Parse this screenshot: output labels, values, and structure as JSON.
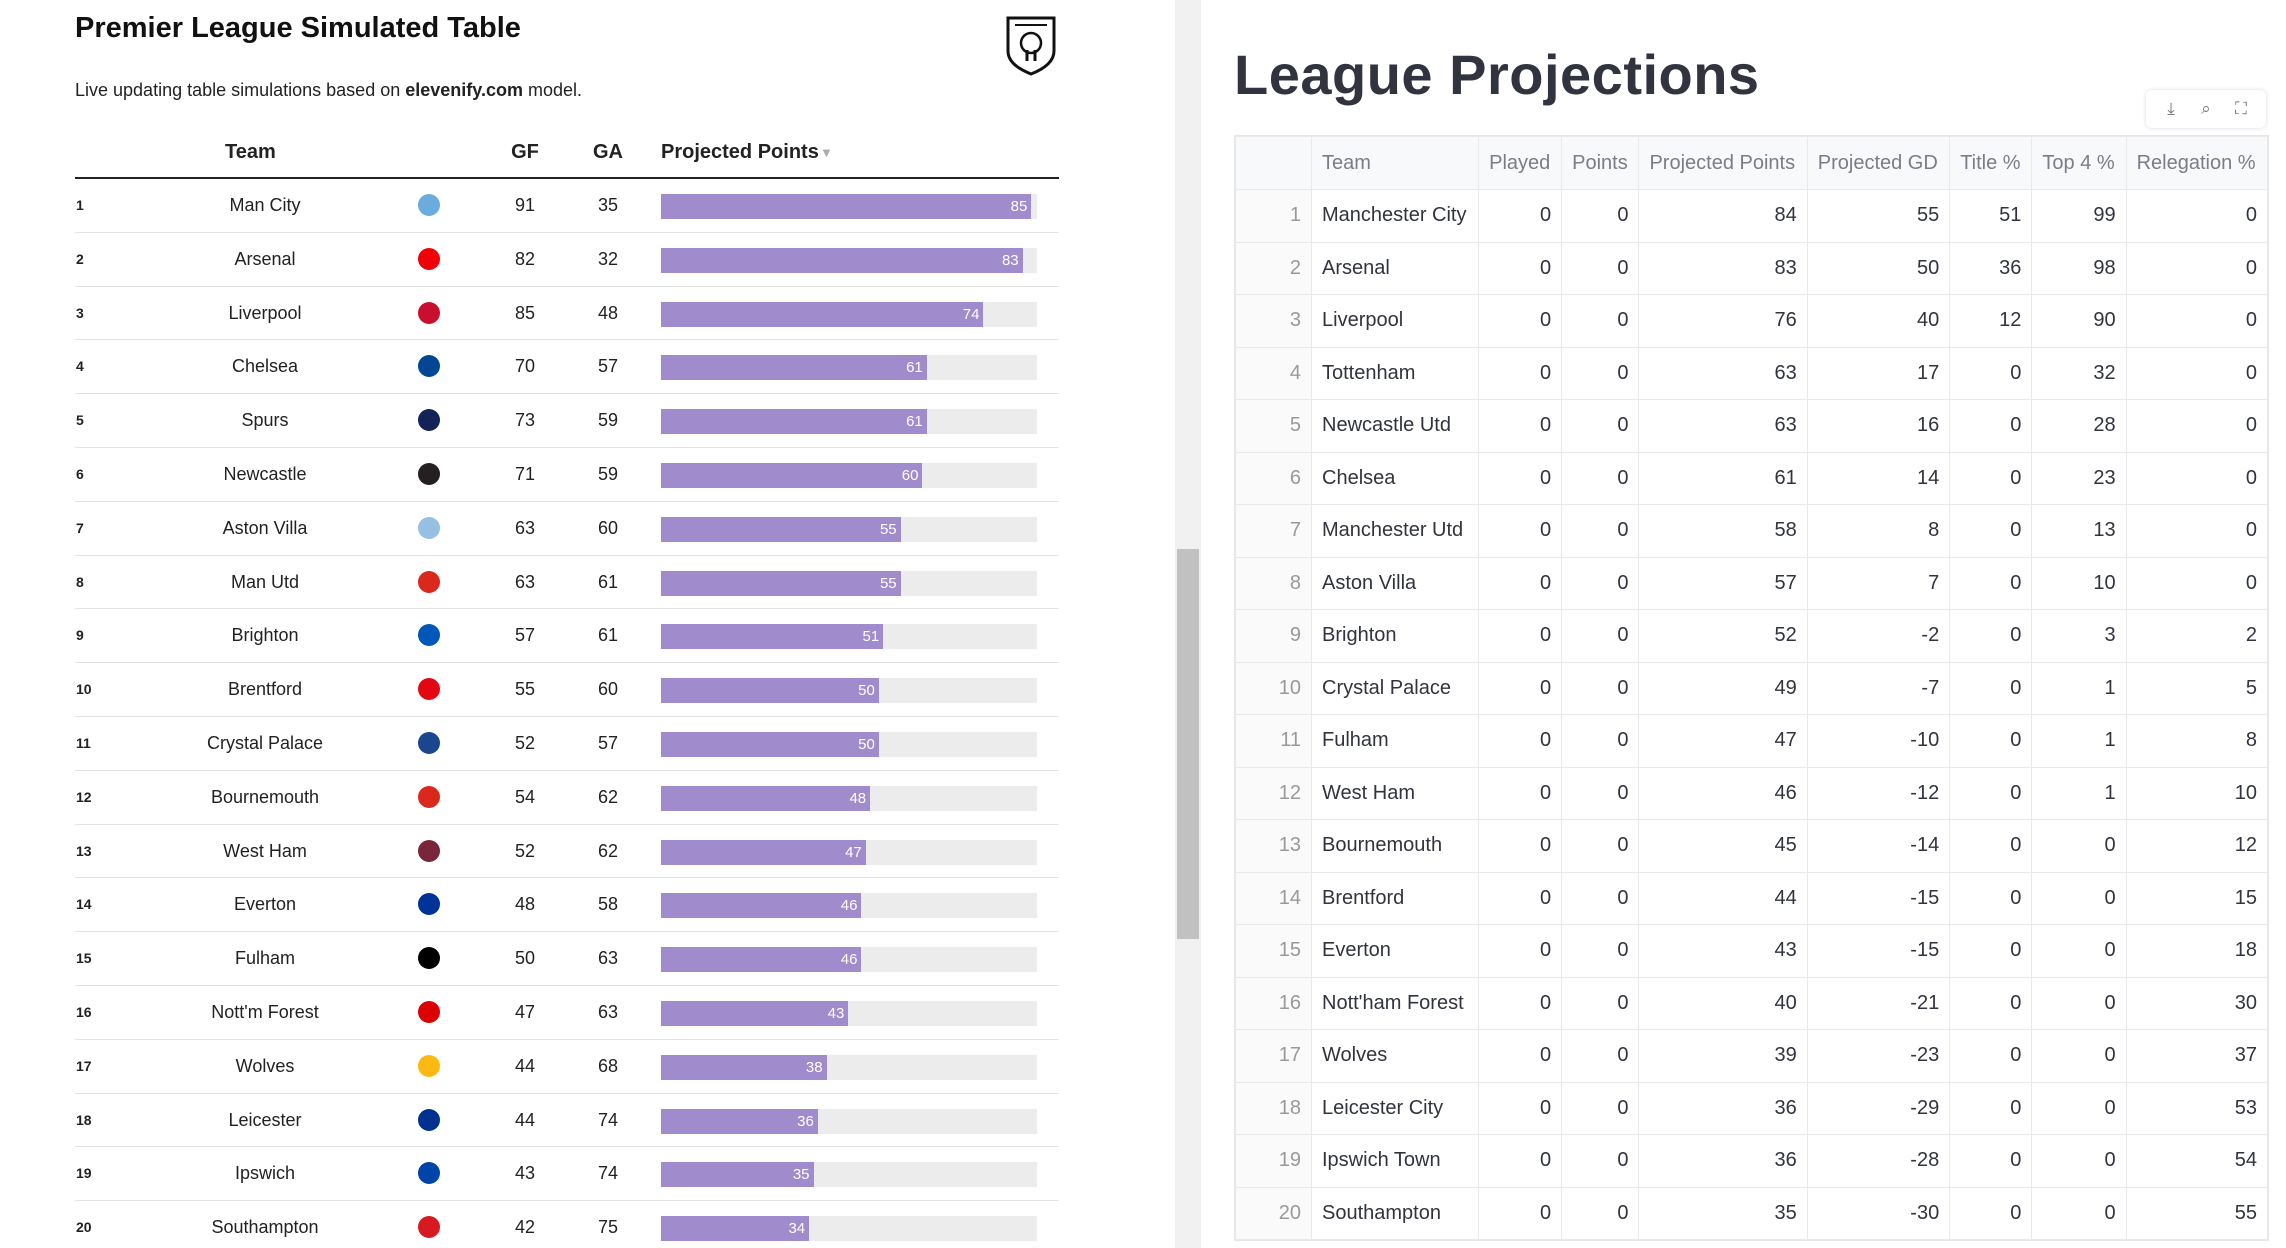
{
  "left": {
    "title": "Premier League Simulated Table",
    "subtitle_prefix": "Live updating table simulations based on ",
    "subtitle_link": "elevenify.com",
    "subtitle_suffix": " model.",
    "headers": {
      "team": "Team",
      "gf": "GF",
      "ga": "GA",
      "projected": "Projected Points",
      "sort_icon": "▼"
    },
    "rows": [
      {
        "rank": "1",
        "team": "Man City",
        "gf": "91",
        "ga": "35",
        "pts": "85",
        "color": "#6cabdd"
      },
      {
        "rank": "2",
        "team": "Arsenal",
        "gf": "82",
        "ga": "32",
        "pts": "83",
        "color": "#ef0107"
      },
      {
        "rank": "3",
        "team": "Liverpool",
        "gf": "85",
        "ga": "48",
        "pts": "74",
        "color": "#c8102e"
      },
      {
        "rank": "4",
        "team": "Chelsea",
        "gf": "70",
        "ga": "57",
        "pts": "61",
        "color": "#034694"
      },
      {
        "rank": "5",
        "team": "Spurs",
        "gf": "73",
        "ga": "59",
        "pts": "61",
        "color": "#132257"
      },
      {
        "rank": "6",
        "team": "Newcastle",
        "gf": "71",
        "ga": "59",
        "pts": "60",
        "color": "#241f20"
      },
      {
        "rank": "7",
        "team": "Aston Villa",
        "gf": "63",
        "ga": "60",
        "pts": "55",
        "color": "#95bfe5"
      },
      {
        "rank": "8",
        "team": "Man Utd",
        "gf": "63",
        "ga": "61",
        "pts": "55",
        "color": "#da291c"
      },
      {
        "rank": "9",
        "team": "Brighton",
        "gf": "57",
        "ga": "61",
        "pts": "51",
        "color": "#0057b8"
      },
      {
        "rank": "10",
        "team": "Brentford",
        "gf": "55",
        "ga": "60",
        "pts": "50",
        "color": "#e30613"
      },
      {
        "rank": "11",
        "team": "Crystal Palace",
        "gf": "52",
        "ga": "57",
        "pts": "50",
        "color": "#1b458f"
      },
      {
        "rank": "12",
        "team": "Bournemouth",
        "gf": "54",
        "ga": "62",
        "pts": "48",
        "color": "#da291c"
      },
      {
        "rank": "13",
        "team": "West Ham",
        "gf": "52",
        "ga": "62",
        "pts": "47",
        "color": "#7a263a"
      },
      {
        "rank": "14",
        "team": "Everton",
        "gf": "48",
        "ga": "58",
        "pts": "46",
        "color": "#003399"
      },
      {
        "rank": "15",
        "team": "Fulham",
        "gf": "50",
        "ga": "63",
        "pts": "46",
        "color": "#000000"
      },
      {
        "rank": "16",
        "team": "Nott'm Forest",
        "gf": "47",
        "ga": "63",
        "pts": "43",
        "color": "#dd0000"
      },
      {
        "rank": "17",
        "team": "Wolves",
        "gf": "44",
        "ga": "68",
        "pts": "38",
        "color": "#fdb913"
      },
      {
        "rank": "18",
        "team": "Leicester",
        "gf": "44",
        "ga": "74",
        "pts": "36",
        "color": "#003090"
      },
      {
        "rank": "19",
        "team": "Ipswich",
        "gf": "43",
        "ga": "74",
        "pts": "35",
        "color": "#0044a9"
      },
      {
        "rank": "20",
        "team": "Southampton",
        "gf": "42",
        "ga": "75",
        "pts": "34",
        "color": "#d71920"
      }
    ],
    "bar_color": "#a08bcc"
  },
  "right": {
    "title": "League Projections",
    "toolbar": {
      "download": "⤓",
      "search": "⌕",
      "fullscreen": "⛶"
    },
    "columns": [
      "",
      "Team",
      "Played",
      "Points",
      "Projected Points",
      "Projected GD",
      "Title %",
      "Top 4 %",
      "Relegation %"
    ],
    "rows": [
      [
        "1",
        "Manchester City",
        "0",
        "0",
        "84",
        "55",
        "51",
        "99",
        "0"
      ],
      [
        "2",
        "Arsenal",
        "0",
        "0",
        "83",
        "50",
        "36",
        "98",
        "0"
      ],
      [
        "3",
        "Liverpool",
        "0",
        "0",
        "76",
        "40",
        "12",
        "90",
        "0"
      ],
      [
        "4",
        "Tottenham",
        "0",
        "0",
        "63",
        "17",
        "0",
        "32",
        "0"
      ],
      [
        "5",
        "Newcastle Utd",
        "0",
        "0",
        "63",
        "16",
        "0",
        "28",
        "0"
      ],
      [
        "6",
        "Chelsea",
        "0",
        "0",
        "61",
        "14",
        "0",
        "23",
        "0"
      ],
      [
        "7",
        "Manchester Utd",
        "0",
        "0",
        "58",
        "8",
        "0",
        "13",
        "0"
      ],
      [
        "8",
        "Aston Villa",
        "0",
        "0",
        "57",
        "7",
        "0",
        "10",
        "0"
      ],
      [
        "9",
        "Brighton",
        "0",
        "0",
        "52",
        "-2",
        "0",
        "3",
        "2"
      ],
      [
        "10",
        "Crystal Palace",
        "0",
        "0",
        "49",
        "-7",
        "0",
        "1",
        "5"
      ],
      [
        "11",
        "Fulham",
        "0",
        "0",
        "47",
        "-10",
        "0",
        "1",
        "8"
      ],
      [
        "12",
        "West Ham",
        "0",
        "0",
        "46",
        "-12",
        "0",
        "1",
        "10"
      ],
      [
        "13",
        "Bournemouth",
        "0",
        "0",
        "45",
        "-14",
        "0",
        "0",
        "12"
      ],
      [
        "14",
        "Brentford",
        "0",
        "0",
        "44",
        "-15",
        "0",
        "0",
        "15"
      ],
      [
        "15",
        "Everton",
        "0",
        "0",
        "43",
        "-15",
        "0",
        "0",
        "18"
      ],
      [
        "16",
        "Nott'ham Forest",
        "0",
        "0",
        "40",
        "-21",
        "0",
        "0",
        "30"
      ],
      [
        "17",
        "Wolves",
        "0",
        "0",
        "39",
        "-23",
        "0",
        "0",
        "37"
      ],
      [
        "18",
        "Leicester City",
        "0",
        "0",
        "36",
        "-29",
        "0",
        "0",
        "53"
      ],
      [
        "19",
        "Ipswich Town",
        "0",
        "0",
        "36",
        "-28",
        "0",
        "0",
        "54"
      ],
      [
        "20",
        "Southampton",
        "0",
        "0",
        "35",
        "-30",
        "0",
        "0",
        "55"
      ]
    ]
  }
}
